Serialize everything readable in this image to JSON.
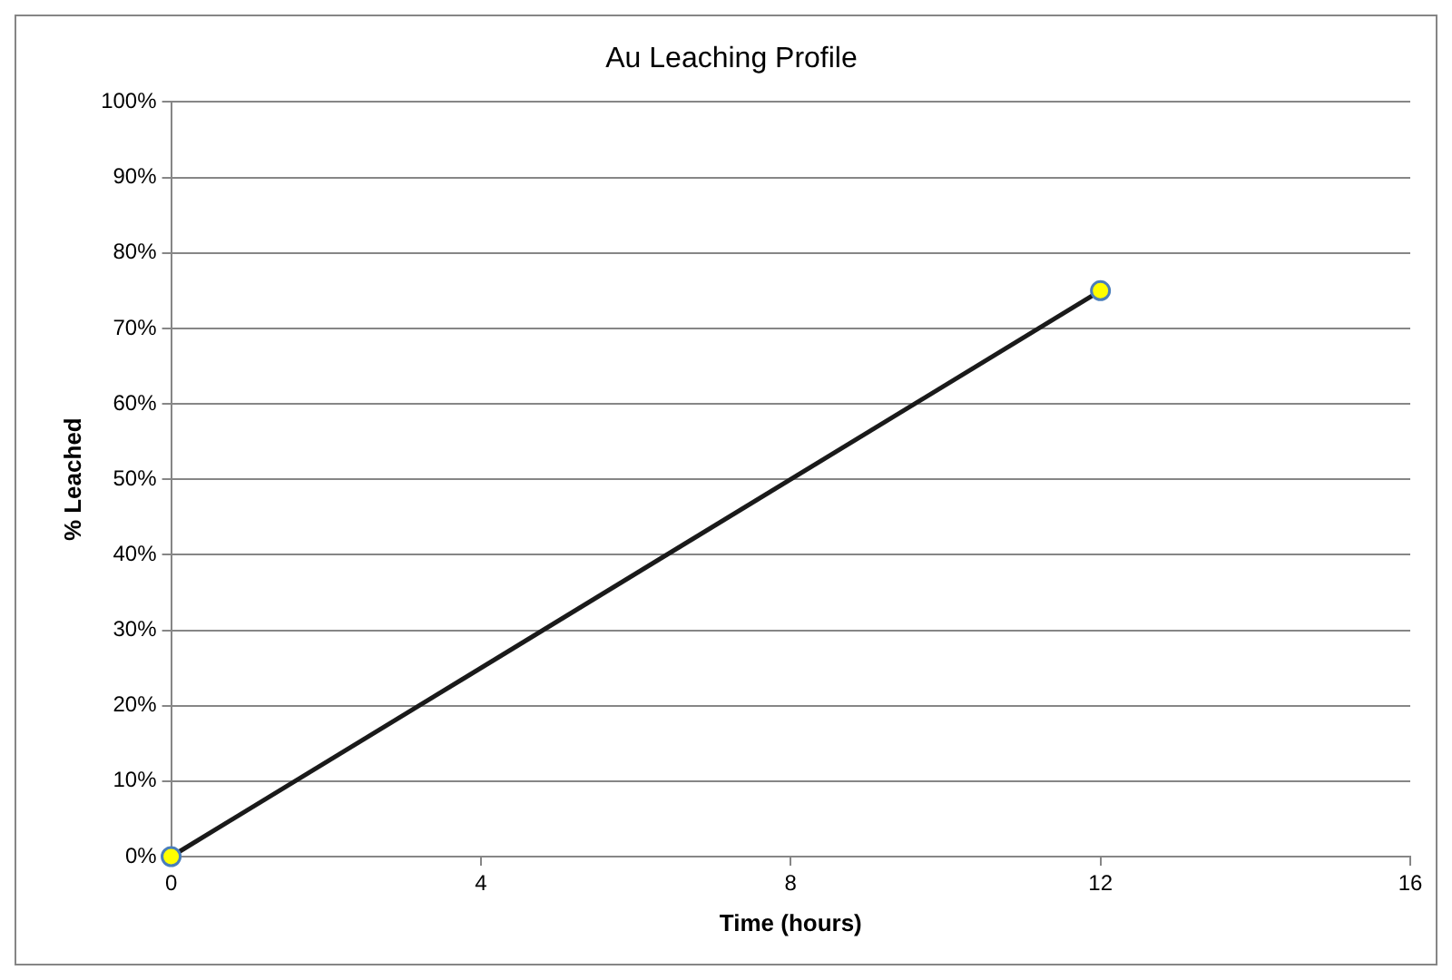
{
  "chart_data": {
    "type": "line",
    "title": "Au Leaching Profile",
    "xlabel": "Time (hours)",
    "ylabel": "% Leached",
    "series": [
      {
        "color": "#1a1a1a",
        "colors": [
          "#ffff00",
          "#ffff00"
        ],
        "x": [
          0,
          12
        ],
        "values": [
          0,
          75
        ]
      }
    ],
    "xlim": [
      0,
      16
    ],
    "xticks": [
      0,
      4,
      8,
      12,
      16
    ],
    "ylim": [
      0,
      100
    ],
    "yticks": [
      {
        "value": 0,
        "label": "0%"
      },
      {
        "value": 10,
        "label": "10%"
      },
      {
        "value": 20,
        "label": "20%"
      },
      {
        "value": 30,
        "label": "30%"
      },
      {
        "value": 40,
        "label": "40%"
      },
      {
        "value": 50,
        "label": "50%"
      },
      {
        "value": 60,
        "label": "60%"
      },
      {
        "value": 70,
        "label": "70%"
      },
      {
        "value": 80,
        "label": "80%"
      },
      {
        "value": 90,
        "label": "90%"
      },
      {
        "value": 100,
        "label": "100%"
      }
    ],
    "grid": "y",
    "legend": false,
    "marker": "circle",
    "line_style": "solid"
  }
}
